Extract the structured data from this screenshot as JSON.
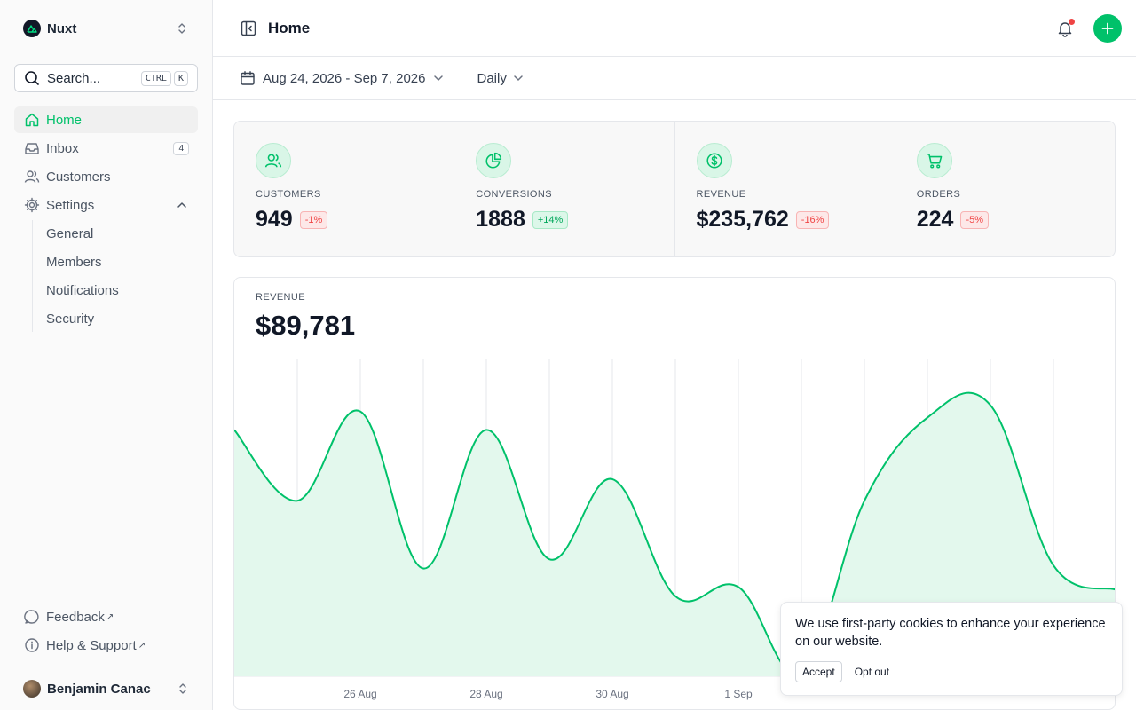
{
  "sidebar": {
    "team_name": "Nuxt",
    "search": {
      "label": "Search...",
      "kbd1": "CTRL",
      "kbd2": "K"
    },
    "items": [
      {
        "label": "Home",
        "active": true
      },
      {
        "label": "Inbox",
        "badge": "4"
      },
      {
        "label": "Customers"
      },
      {
        "label": "Settings"
      }
    ],
    "settings_sub": [
      "General",
      "Members",
      "Notifications",
      "Security"
    ],
    "footer_links": [
      "Feedback",
      "Help & Support"
    ],
    "user_name": "Benjamin Canac"
  },
  "header": {
    "title": "Home"
  },
  "toolbar": {
    "date_range": "Aug 24, 2026 - Sep 7, 2026",
    "period": "Daily"
  },
  "stats": [
    {
      "caption": "CUSTOMERS",
      "value": "949",
      "change": "-1%",
      "trend": "negative",
      "icon": "users-icon"
    },
    {
      "caption": "CONVERSIONS",
      "value": "1888",
      "change": "+14%",
      "trend": "positive",
      "icon": "pie-chart-icon"
    },
    {
      "caption": "REVENUE",
      "value": "$235,762",
      "change": "-16%",
      "trend": "negative",
      "icon": "dollar-icon"
    },
    {
      "caption": "ORDERS",
      "value": "224",
      "change": "-5%",
      "trend": "negative",
      "icon": "cart-icon"
    }
  ],
  "revenue_card": {
    "caption": "REVENUE",
    "value": "$89,781"
  },
  "chart_data": {
    "type": "area",
    "x_ticks": [
      "26 Aug",
      "28 Aug",
      "30 Aug",
      "1 Sep"
    ],
    "series": [
      {
        "values": [
          0.8,
          0.57,
          0.86,
          0.35,
          0.8,
          0.38,
          0.64,
          0.26,
          0.29,
          0.01,
          0.57,
          0.84,
          0.88,
          0.36,
          0.28
        ]
      }
    ],
    "ylim": [
      0,
      1
    ],
    "grid": true,
    "colors": {
      "line": "#00c16a",
      "fill": "#e3f8ed"
    }
  },
  "cookie": {
    "message": "We use first-party cookies to enhance your experience on our website.",
    "accept": "Accept",
    "opt_out": "Opt out"
  },
  "colors": {
    "primary": "#00c16a",
    "negative": "#ef4444"
  }
}
